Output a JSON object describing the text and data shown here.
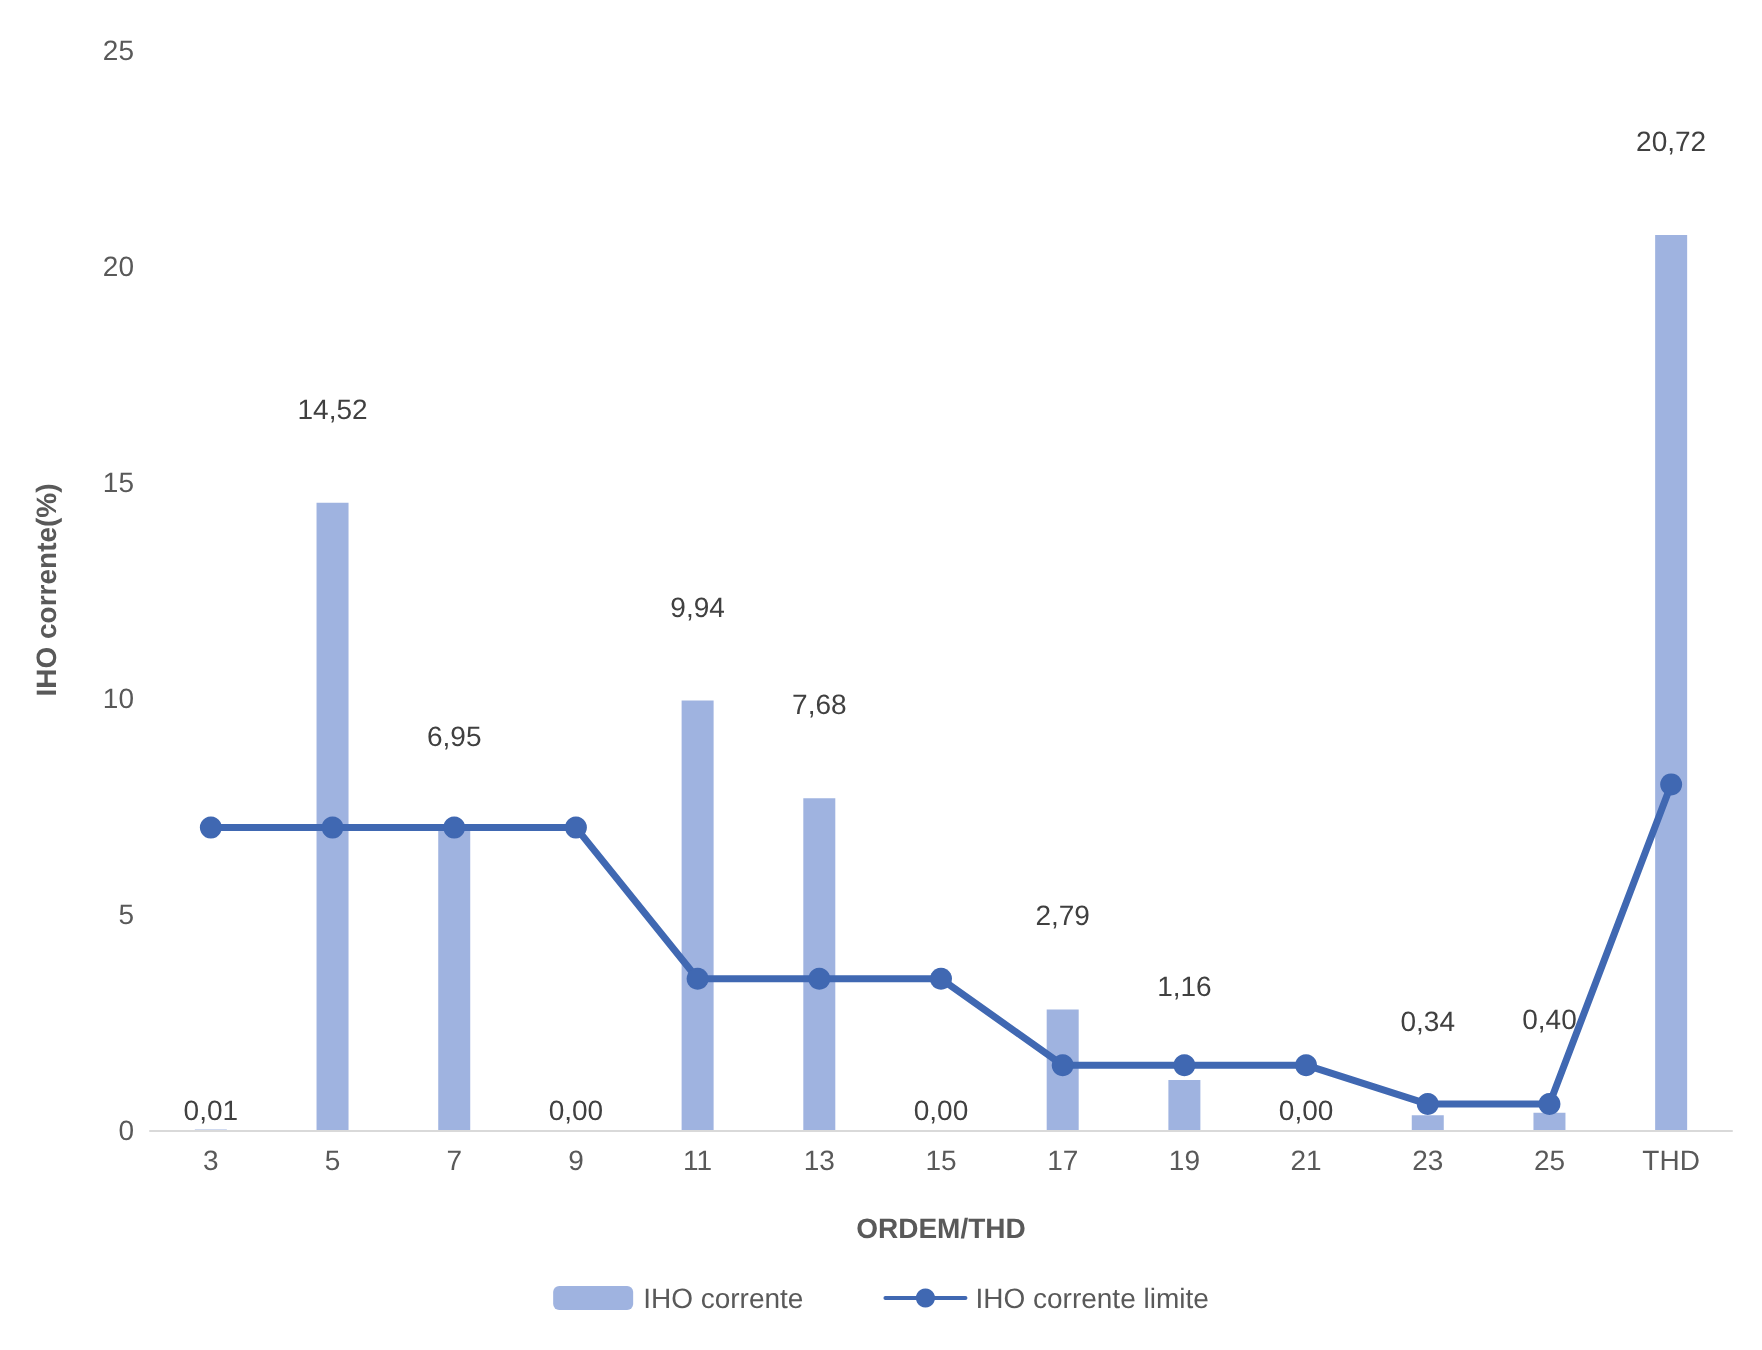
{
  "chart_data": {
    "type": "bar",
    "xlabel": "ORDEM/THD",
    "ylabel": "IHO corrente(%)",
    "categories": [
      "3",
      "5",
      "7",
      "9",
      "11",
      "13",
      "15",
      "17",
      "19",
      "21",
      "23",
      "25",
      "THD"
    ],
    "series": [
      {
        "name": "IHO corrente",
        "color": "#9fb3e0",
        "values": [
          0.01,
          14.52,
          6.95,
          0.0,
          9.94,
          7.68,
          0.0,
          2.79,
          1.16,
          0.0,
          0.34,
          0.4,
          20.72
        ],
        "value_labels": [
          "0,01",
          "14,52",
          "6,95",
          "0,00",
          "9,94",
          "7,68",
          "0,00",
          "2,79",
          "1,16",
          "0,00",
          "0,34",
          "0,40",
          "20,72"
        ]
      },
      {
        "name": "IHO corrente limite",
        "type": "line",
        "color": "#4068b2",
        "marker": "circle",
        "line_style": "solid",
        "values": [
          7,
          7,
          7,
          7,
          3.5,
          3.5,
          3.5,
          1.5,
          1.5,
          1.5,
          0.6,
          0.6,
          8
        ]
      }
    ],
    "ylim": [
      0,
      25
    ],
    "yticks": [
      0,
      5,
      10,
      15,
      20,
      25
    ],
    "grid": false,
    "legend": "bottom"
  }
}
